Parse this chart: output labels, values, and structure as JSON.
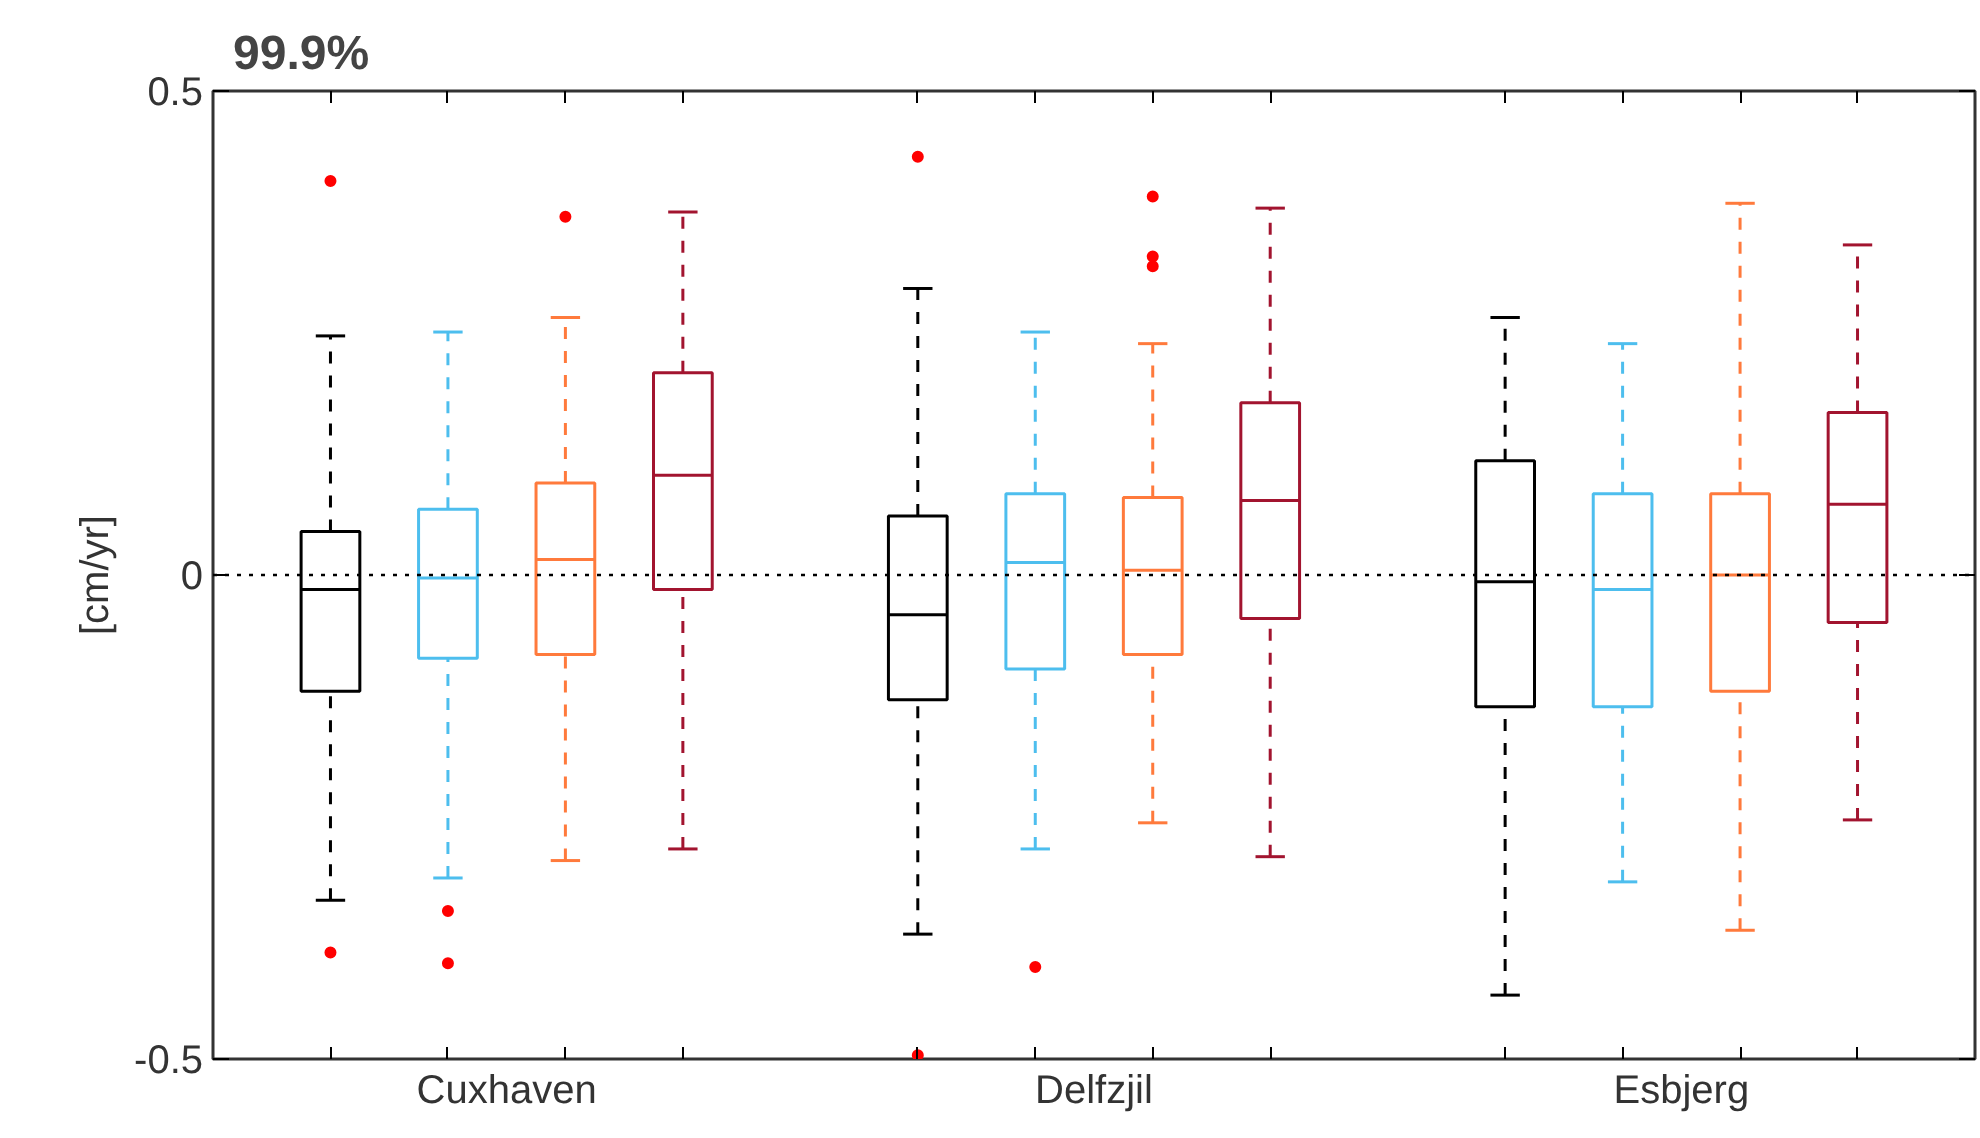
{
  "chart_data": {
    "type": "box",
    "title": "99.9%",
    "ylabel": "[cm/yr]",
    "categories": [
      "Cuxhaven",
      "Delfzjil",
      "Esbjerg"
    ],
    "ylim": [
      -0.5,
      0.5
    ],
    "yticks": [
      -0.5,
      0,
      0.5
    ],
    "grid": false,
    "ref_lines": [
      {
        "axis": "y",
        "value": 0,
        "label": null,
        "color": "#000000",
        "line_style": "dotted"
      }
    ],
    "series": [
      {
        "color": "#000000",
        "boxes": [
          {
            "low": -0.336,
            "q1": -0.12,
            "median": -0.015,
            "q3": 0.045,
            "high": 0.247,
            "outliers": [
              0.407,
              -0.39
            ]
          },
          {
            "low": -0.371,
            "q1": -0.129,
            "median": -0.041,
            "q3": 0.061,
            "high": 0.296,
            "outliers": [
              0.432,
              -0.496
            ]
          },
          {
            "low": -0.434,
            "q1": -0.136,
            "median": -0.007,
            "q3": 0.118,
            "high": 0.266
          }
        ]
      },
      {
        "color": "#4dbeee",
        "boxes": [
          {
            "low": -0.313,
            "q1": -0.086,
            "median": -0.003,
            "q3": 0.068,
            "high": 0.251,
            "outliers": [
              -0.347,
              -0.401
            ]
          },
          {
            "low": -0.283,
            "q1": -0.097,
            "median": 0.013,
            "q3": 0.084,
            "high": 0.251,
            "outliers": [
              -0.405
            ]
          },
          {
            "low": -0.317,
            "q1": -0.136,
            "median": -0.015,
            "q3": 0.084,
            "high": 0.239
          }
        ]
      },
      {
        "color": "#ff7a3c",
        "boxes": [
          {
            "low": -0.295,
            "q1": -0.082,
            "median": 0.016,
            "q3": 0.095,
            "high": 0.266,
            "outliers": [
              0.37
            ]
          },
          {
            "low": -0.256,
            "q1": -0.082,
            "median": 0.005,
            "q3": 0.08,
            "high": 0.239,
            "outliers": [
              0.391,
              0.329,
              0.319
            ]
          },
          {
            "low": -0.367,
            "q1": -0.12,
            "median": 0.0,
            "q3": 0.084,
            "high": 0.384
          }
        ]
      },
      {
        "color": "#a2142f",
        "boxes": [
          {
            "low": -0.283,
            "q1": -0.015,
            "median": 0.103,
            "q3": 0.209,
            "high": 0.375
          },
          {
            "low": -0.291,
            "q1": -0.045,
            "median": 0.077,
            "q3": 0.178,
            "high": 0.379
          },
          {
            "low": -0.253,
            "q1": -0.049,
            "median": 0.073,
            "q3": 0.168,
            "high": 0.341
          }
        ]
      }
    ]
  }
}
